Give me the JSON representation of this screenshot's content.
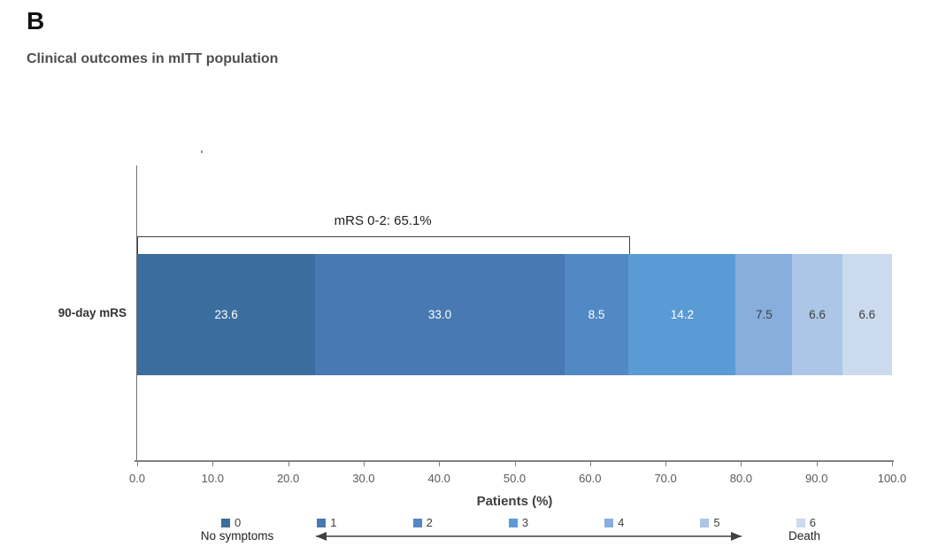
{
  "panel_label": "B",
  "title": "Clinical outcomes in mITT population",
  "chart_data": {
    "type": "bar",
    "orientation": "horizontal-stacked",
    "category": "90-day mRS",
    "series": [
      {
        "name": "0",
        "value": 23.6,
        "label": "23.6",
        "color": "#3c6d9f",
        "label_color": "#ffffff"
      },
      {
        "name": "1",
        "value": 33.0,
        "label": "33.0",
        "color": "#4879b3",
        "label_color": "#ffffff"
      },
      {
        "name": "2",
        "value": 8.5,
        "label": "8.5",
        "color": "#5189c5",
        "label_color": "#ffffff"
      },
      {
        "name": "3",
        "value": 14.2,
        "label": "14.2",
        "color": "#5b9bd5",
        "label_color": "#ffffff"
      },
      {
        "name": "4",
        "value": 7.5,
        "label": "7.5",
        "color": "#87aedd",
        "label_color": "#3f3f3f"
      },
      {
        "name": "5",
        "value": 6.6,
        "label": "6.6",
        "color": "#abc6e6",
        "label_color": "#3f3f3f"
      },
      {
        "name": "6",
        "value": 6.6,
        "label": "6.6",
        "color": "#cbdaee",
        "label_color": "#3f3f3f"
      }
    ],
    "xlabel": "Patients (%)",
    "xlim": [
      0,
      100
    ],
    "x_ticks": [
      "0.0",
      "10.0",
      "20.0",
      "30.0",
      "40.0",
      "50.0",
      "60.0",
      "70.0",
      "80.0",
      "90.0",
      "100.0"
    ],
    "grid": false,
    "legend_position": "bottom",
    "annotation": {
      "text": "mRS 0-2: 65.1%",
      "from": 0,
      "to": 65.1
    },
    "legend": [
      {
        "label": "0",
        "color": "#3c6d9f"
      },
      {
        "label": "1",
        "color": "#4879b3"
      },
      {
        "label": "2",
        "color": "#5189c5"
      },
      {
        "label": "3",
        "color": "#5b9bd5"
      },
      {
        "label": "4",
        "color": "#87aedd"
      },
      {
        "label": "5",
        "color": "#abc6e6"
      },
      {
        "label": "6",
        "color": "#cbdaee"
      }
    ],
    "legend_footer": {
      "left": "No symptoms",
      "right": "Death"
    }
  }
}
